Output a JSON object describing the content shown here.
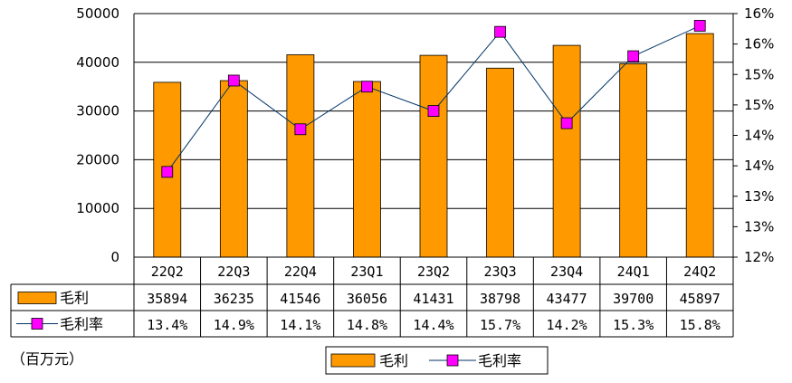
{
  "chart_data": {
    "type": "bar",
    "categories": [
      "22Q2",
      "22Q3",
      "22Q4",
      "23Q1",
      "23Q2",
      "23Q3",
      "23Q4",
      "24Q1",
      "24Q2"
    ],
    "series": [
      {
        "name": "毛利",
        "type": "bar",
        "axis": "left",
        "values": [
          35894,
          36235,
          41546,
          36056,
          41431,
          38798,
          43477,
          39700,
          45897
        ],
        "color": "#FF9900"
      },
      {
        "name": "毛利率",
        "type": "line",
        "axis": "right",
        "values": [
          13.4,
          14.9,
          14.1,
          14.8,
          14.4,
          15.7,
          14.2,
          15.3,
          15.8
        ],
        "display": [
          "13.4%",
          "14.9%",
          "14.1%",
          "14.8%",
          "14.4%",
          "15.7%",
          "14.2%",
          "15.3%",
          "15.8%"
        ],
        "color": "#FF00FF",
        "line_color": "#003366"
      }
    ],
    "y_left": {
      "range": [
        0,
        50000
      ],
      "ticks": [
        "0",
        "10000",
        "20000",
        "30000",
        "40000",
        "50000"
      ]
    },
    "y_right": {
      "range": [
        12,
        16
      ],
      "ticks": [
        "12%",
        "13%",
        "13%",
        "14%",
        "14%",
        "15%",
        "15%",
        "16%",
        "16%"
      ]
    },
    "unit_note": "（百万元）",
    "grid": true,
    "legend": {
      "position": "bottom-center",
      "items": [
        "毛利",
        "毛利率"
      ]
    },
    "data_table": true
  }
}
